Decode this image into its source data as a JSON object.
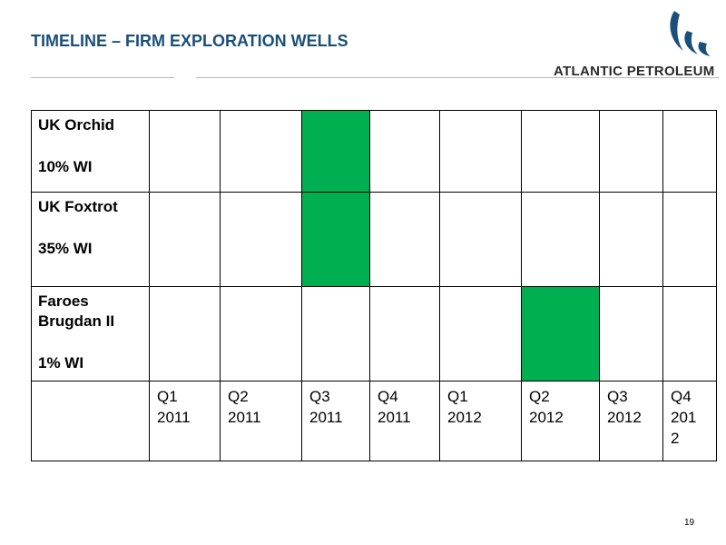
{
  "slide": {
    "title": "TIMELINE – FIRM EXPLORATION WELLS",
    "page_number": "19"
  },
  "logo": {
    "text": "ATLANTIC PETROLEUM",
    "color": "#1a4f7a"
  },
  "table": {
    "rows": [
      {
        "name": "UK Orchid",
        "wi": "10% WI",
        "filled_columns": [
          2
        ]
      },
      {
        "name": "UK Foxtrot",
        "wi": "35% WI",
        "filled_columns": [
          2
        ]
      },
      {
        "name": "Faroes Brugdan II",
        "wi": "1% WI",
        "filled_columns": [
          5
        ]
      }
    ],
    "quarters": [
      {
        "q": "Q1",
        "year": "2011"
      },
      {
        "q": "Q2",
        "year": "2011"
      },
      {
        "q": "Q3",
        "year": "2011"
      },
      {
        "q": "Q4",
        "year": "2011"
      },
      {
        "q": "Q1",
        "year": "2012"
      },
      {
        "q": "Q2",
        "year": "2012"
      },
      {
        "q": "Q3",
        "year": "2012"
      },
      {
        "q": "Q4",
        "year": "2012"
      }
    ],
    "fill_color": "#00b050",
    "divider_color": "#e02020"
  }
}
